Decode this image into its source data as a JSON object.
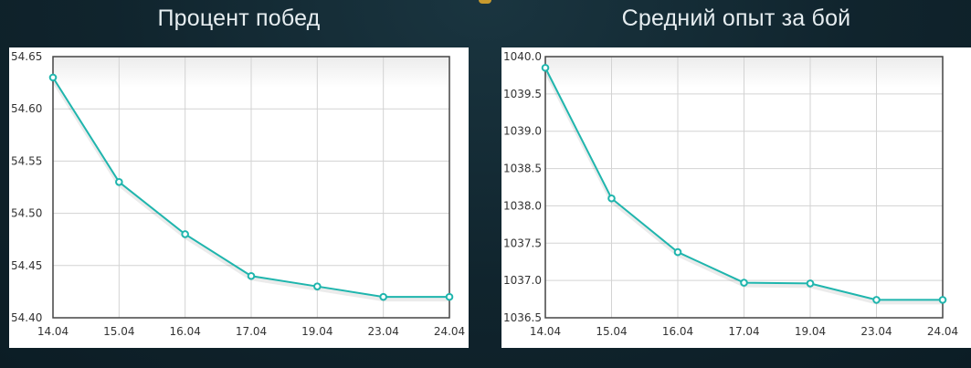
{
  "charts": [
    {
      "title": "Процент побед",
      "chart_data": {
        "type": "line",
        "title": "Процент побед",
        "xlabel": "",
        "ylabel": "",
        "categories": [
          "14.04",
          "15.04",
          "16.04",
          "17.04",
          "19.04",
          "23.04",
          "24.04"
        ],
        "values": [
          54.63,
          54.53,
          54.48,
          54.44,
          54.43,
          54.42,
          54.42
        ],
        "ylim": [
          54.4,
          54.65
        ],
        "yticks": [
          "54.40",
          "54.45",
          "54.50",
          "54.55",
          "54.60",
          "54.65"
        ],
        "grid": true,
        "line_color": "#1fb5ad"
      }
    },
    {
      "title": "Средний опыт за бой",
      "chart_data": {
        "type": "line",
        "title": "Средний опыт за бой",
        "xlabel": "",
        "ylabel": "",
        "categories": [
          "14.04",
          "15.04",
          "16.04",
          "17.04",
          "19.04",
          "23.04",
          "24.04"
        ],
        "values": [
          1039.85,
          1038.1,
          1037.38,
          1036.97,
          1036.96,
          1036.74,
          1036.74
        ],
        "ylim": [
          1036.5,
          1040.0
        ],
        "yticks": [
          "1036.5",
          "1037.0",
          "1037.5",
          "1038.0",
          "1038.5",
          "1039.0",
          "1039.5",
          "1040.0"
        ],
        "grid": true,
        "line_color": "#1fb5ad"
      }
    }
  ]
}
